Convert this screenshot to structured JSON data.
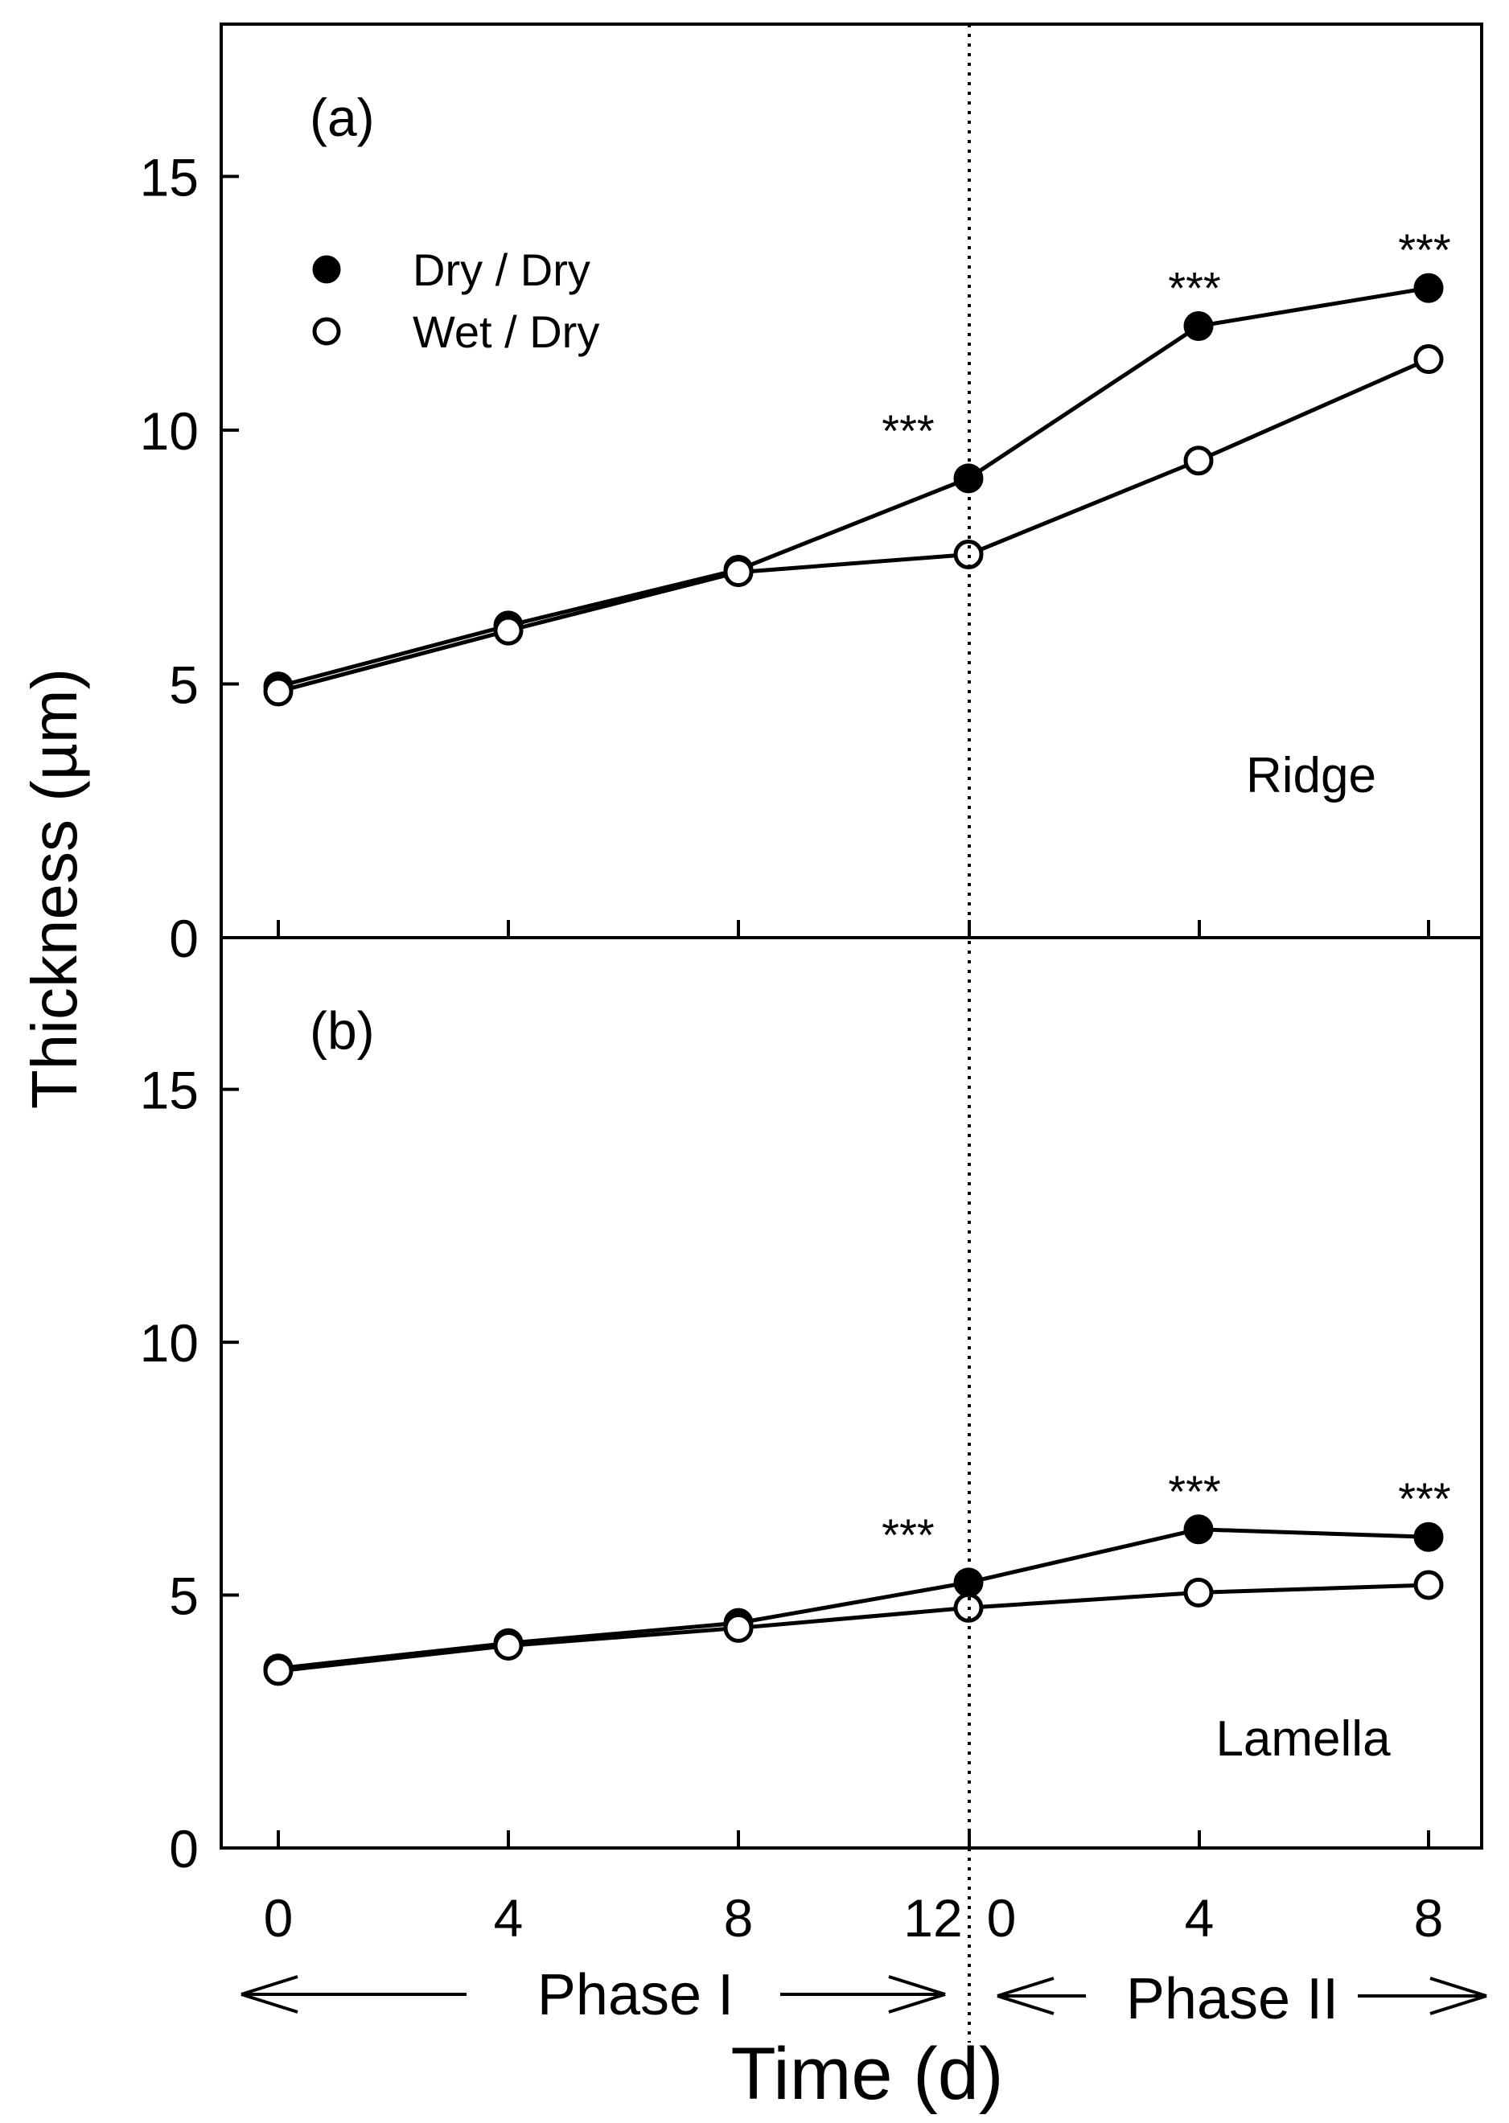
{
  "chart_data": [
    {
      "type": "line",
      "panel_label": "(a)",
      "annotation": "Ridge",
      "ylabel": "Thickness (µm)",
      "ylim": [
        0,
        18
      ],
      "yticks": [
        "0",
        "5",
        "10",
        "15"
      ],
      "ytick_values": [
        0,
        5,
        10,
        15
      ],
      "x": [
        0,
        4,
        8,
        12,
        16,
        20
      ],
      "series": [
        {
          "name": "Dry / Dry",
          "marker": "filled-circle",
          "values": [
            4.95,
            6.15,
            7.25,
            9.05,
            12.05,
            12.8
          ]
        },
        {
          "name": "Wet / Dry",
          "marker": "open-circle",
          "values": [
            4.85,
            6.05,
            7.2,
            7.55,
            9.4,
            11.4
          ]
        }
      ],
      "significance": [
        {
          "x": 12,
          "label": "***"
        },
        {
          "x": 16,
          "label": "***"
        },
        {
          "x": 20,
          "label": "***"
        }
      ],
      "legend": "top-left"
    },
    {
      "type": "line",
      "panel_label": "(b)",
      "annotation": "Lamella",
      "ylim": [
        0,
        18
      ],
      "yticks": [
        "0",
        "5",
        "10",
        "15"
      ],
      "ytick_values": [
        0,
        5,
        10,
        15
      ],
      "x": [
        0,
        4,
        8,
        12,
        16,
        20
      ],
      "series": [
        {
          "name": "Dry / Dry",
          "marker": "filled-circle",
          "values": [
            3.55,
            4.05,
            4.45,
            5.25,
            6.3,
            6.15
          ]
        },
        {
          "name": "Wet / Dry",
          "marker": "open-circle",
          "values": [
            3.5,
            4.0,
            4.35,
            4.75,
            5.05,
            5.2
          ]
        }
      ],
      "significance": [
        {
          "x": 12,
          "label": "***"
        },
        {
          "x": 16,
          "label": "***"
        },
        {
          "x": 20,
          "label": "***"
        }
      ]
    }
  ],
  "xaxis": {
    "xlabel": "Time (d)",
    "tick_labels": [
      "0",
      "4",
      "8",
      "12",
      "0",
      "4",
      "8"
    ],
    "phase1": "Phase I",
    "phase2": "Phase II",
    "divider_x": 12
  }
}
